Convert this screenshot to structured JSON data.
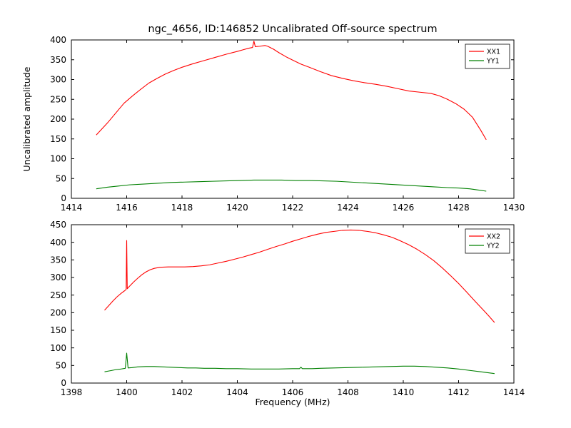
{
  "figure": {
    "title": "ngc_4656, ID:146852 Uncalibrated Off-source spectrum",
    "ylabel": "Uncalibrated amplitude",
    "xlabel": "Frequency (MHz)",
    "background": "#ffffff",
    "frame_color": "#000000",
    "colors": {
      "xx": "#ff0000",
      "yy": "#008000"
    }
  },
  "chart_data": [
    {
      "type": "line",
      "title": "",
      "xlim": [
        1414,
        1430
      ],
      "ylim": [
        0,
        400
      ],
      "xticks": [
        1414,
        1416,
        1418,
        1420,
        1422,
        1424,
        1426,
        1428,
        1430
      ],
      "yticks": [
        0,
        50,
        100,
        150,
        200,
        250,
        300,
        350,
        400
      ],
      "grid": false,
      "legend_position": "upper right",
      "series": [
        {
          "name": "XX1",
          "color": "#ff0000",
          "points": [
            [
              1414.9,
              160
            ],
            [
              1415.1,
              175
            ],
            [
              1415.3,
              190
            ],
            [
              1415.6,
              215
            ],
            [
              1415.9,
              240
            ],
            [
              1416.2,
              258
            ],
            [
              1416.5,
              275
            ],
            [
              1416.8,
              291
            ],
            [
              1417.1,
              303
            ],
            [
              1417.4,
              314
            ],
            [
              1417.7,
              323
            ],
            [
              1418.0,
              331
            ],
            [
              1418.4,
              340
            ],
            [
              1418.8,
              348
            ],
            [
              1419.2,
              356
            ],
            [
              1419.6,
              364
            ],
            [
              1420.0,
              371
            ],
            [
              1420.2,
              375
            ],
            [
              1420.4,
              379
            ],
            [
              1420.55,
              381
            ],
            [
              1420.6,
              397
            ],
            [
              1420.65,
              383
            ],
            [
              1420.8,
              384
            ],
            [
              1421.0,
              386
            ],
            [
              1421.1,
              384
            ],
            [
              1421.3,
              377
            ],
            [
              1421.5,
              368
            ],
            [
              1421.8,
              356
            ],
            [
              1422.0,
              349
            ],
            [
              1422.3,
              339
            ],
            [
              1422.6,
              331
            ],
            [
              1423.0,
              320
            ],
            [
              1423.4,
              310
            ],
            [
              1423.8,
              303
            ],
            [
              1424.2,
              297
            ],
            [
              1424.6,
              292
            ],
            [
              1425.0,
              288
            ],
            [
              1425.4,
              283
            ],
            [
              1425.8,
              277
            ],
            [
              1426.2,
              271
            ],
            [
              1426.6,
              268
            ],
            [
              1427.0,
              265
            ],
            [
              1427.3,
              259
            ],
            [
              1427.6,
              250
            ],
            [
              1427.9,
              239
            ],
            [
              1428.2,
              225
            ],
            [
              1428.5,
              205
            ],
            [
              1428.8,
              172
            ],
            [
              1429.0,
              148
            ]
          ]
        },
        {
          "name": "YY1",
          "color": "#008000",
          "points": [
            [
              1414.9,
              24
            ],
            [
              1415.3,
              28
            ],
            [
              1415.7,
              31
            ],
            [
              1416.1,
              34
            ],
            [
              1416.6,
              36
            ],
            [
              1417.1,
              38
            ],
            [
              1417.6,
              40
            ],
            [
              1418.1,
              41
            ],
            [
              1418.6,
              42
            ],
            [
              1419.1,
              43
            ],
            [
              1419.6,
              44
            ],
            [
              1420.1,
              45
            ],
            [
              1420.6,
              46
            ],
            [
              1421.1,
              46
            ],
            [
              1421.6,
              46
            ],
            [
              1422.1,
              45
            ],
            [
              1422.6,
              45
            ],
            [
              1423.1,
              44
            ],
            [
              1423.6,
              43
            ],
            [
              1424.1,
              41
            ],
            [
              1424.6,
              39
            ],
            [
              1425.1,
              37
            ],
            [
              1425.6,
              35
            ],
            [
              1426.1,
              33
            ],
            [
              1426.6,
              31
            ],
            [
              1427.1,
              29
            ],
            [
              1427.6,
              27
            ],
            [
              1428.0,
              26
            ],
            [
              1428.4,
              24
            ],
            [
              1428.7,
              21
            ],
            [
              1429.0,
              18
            ]
          ]
        }
      ]
    },
    {
      "type": "line",
      "title": "",
      "xlim": [
        1398,
        1414
      ],
      "ylim": [
        0,
        450
      ],
      "xticks": [
        1398,
        1400,
        1402,
        1404,
        1406,
        1408,
        1410,
        1412,
        1414
      ],
      "yticks": [
        0,
        50,
        100,
        150,
        200,
        250,
        300,
        350,
        400,
        450
      ],
      "grid": false,
      "legend_position": "upper right",
      "series": [
        {
          "name": "XX2",
          "color": "#ff0000",
          "points": [
            [
              1399.2,
              207
            ],
            [
              1399.35,
              220
            ],
            [
              1399.5,
              233
            ],
            [
              1399.65,
              245
            ],
            [
              1399.8,
              255
            ],
            [
              1399.92,
              262
            ],
            [
              1399.98,
              266
            ],
            [
              1400.0,
              405
            ],
            [
              1400.02,
              268
            ],
            [
              1400.1,
              275
            ],
            [
              1400.25,
              287
            ],
            [
              1400.4,
              298
            ],
            [
              1400.55,
              308
            ],
            [
              1400.7,
              316
            ],
            [
              1400.85,
              322
            ],
            [
              1401.0,
              326
            ],
            [
              1401.2,
              329
            ],
            [
              1401.5,
              330
            ],
            [
              1401.8,
              330
            ],
            [
              1402.1,
              330
            ],
            [
              1402.4,
              331
            ],
            [
              1402.7,
              333
            ],
            [
              1403.0,
              336
            ],
            [
              1403.3,
              341
            ],
            [
              1403.6,
              346
            ],
            [
              1403.9,
              352
            ],
            [
              1404.2,
              358
            ],
            [
              1404.5,
              365
            ],
            [
              1404.8,
              372
            ],
            [
              1405.1,
              380
            ],
            [
              1405.4,
              388
            ],
            [
              1405.7,
              395
            ],
            [
              1406.0,
              403
            ],
            [
              1406.3,
              410
            ],
            [
              1406.6,
              417
            ],
            [
              1406.9,
              423
            ],
            [
              1407.2,
              428
            ],
            [
              1407.5,
              431
            ],
            [
              1407.8,
              434
            ],
            [
              1408.1,
              435
            ],
            [
              1408.4,
              434
            ],
            [
              1408.7,
              431
            ],
            [
              1409.0,
              427
            ],
            [
              1409.3,
              421
            ],
            [
              1409.6,
              414
            ],
            [
              1409.9,
              404
            ],
            [
              1410.2,
              393
            ],
            [
              1410.5,
              380
            ],
            [
              1410.8,
              365
            ],
            [
              1411.1,
              348
            ],
            [
              1411.4,
              328
            ],
            [
              1411.7,
              306
            ],
            [
              1412.0,
              283
            ],
            [
              1412.3,
              258
            ],
            [
              1412.6,
              232
            ],
            [
              1412.9,
              207
            ],
            [
              1413.1,
              190
            ],
            [
              1413.3,
              172
            ]
          ]
        },
        {
          "name": "YY2",
          "color": "#008000",
          "points": [
            [
              1399.2,
              32
            ],
            [
              1399.4,
              35
            ],
            [
              1399.6,
              38
            ],
            [
              1399.8,
              40
            ],
            [
              1399.95,
              42
            ],
            [
              1400.0,
              85
            ],
            [
              1400.05,
              43
            ],
            [
              1400.2,
              44
            ],
            [
              1400.4,
              46
            ],
            [
              1400.7,
              47
            ],
            [
              1401.0,
              47
            ],
            [
              1401.3,
              46
            ],
            [
              1401.6,
              45
            ],
            [
              1401.9,
              44
            ],
            [
              1402.2,
              43
            ],
            [
              1402.5,
              43
            ],
            [
              1402.8,
              42
            ],
            [
              1403.2,
              42
            ],
            [
              1403.6,
              41
            ],
            [
              1404.0,
              41
            ],
            [
              1404.5,
              40
            ],
            [
              1405.0,
              40
            ],
            [
              1405.5,
              40
            ],
            [
              1406.0,
              41
            ],
            [
              1406.25,
              41
            ],
            [
              1406.3,
              45
            ],
            [
              1406.35,
              41
            ],
            [
              1406.7,
              41
            ],
            [
              1407.0,
              42
            ],
            [
              1407.5,
              43
            ],
            [
              1408.0,
              44
            ],
            [
              1408.5,
              45
            ],
            [
              1409.0,
              46
            ],
            [
              1409.5,
              47
            ],
            [
              1410.0,
              48
            ],
            [
              1410.4,
              48
            ],
            [
              1410.8,
              47
            ],
            [
              1411.2,
              45
            ],
            [
              1411.6,
              43
            ],
            [
              1412.0,
              40
            ],
            [
              1412.4,
              36
            ],
            [
              1412.8,
              32
            ],
            [
              1413.1,
              29
            ],
            [
              1413.3,
              27
            ]
          ]
        }
      ]
    }
  ]
}
